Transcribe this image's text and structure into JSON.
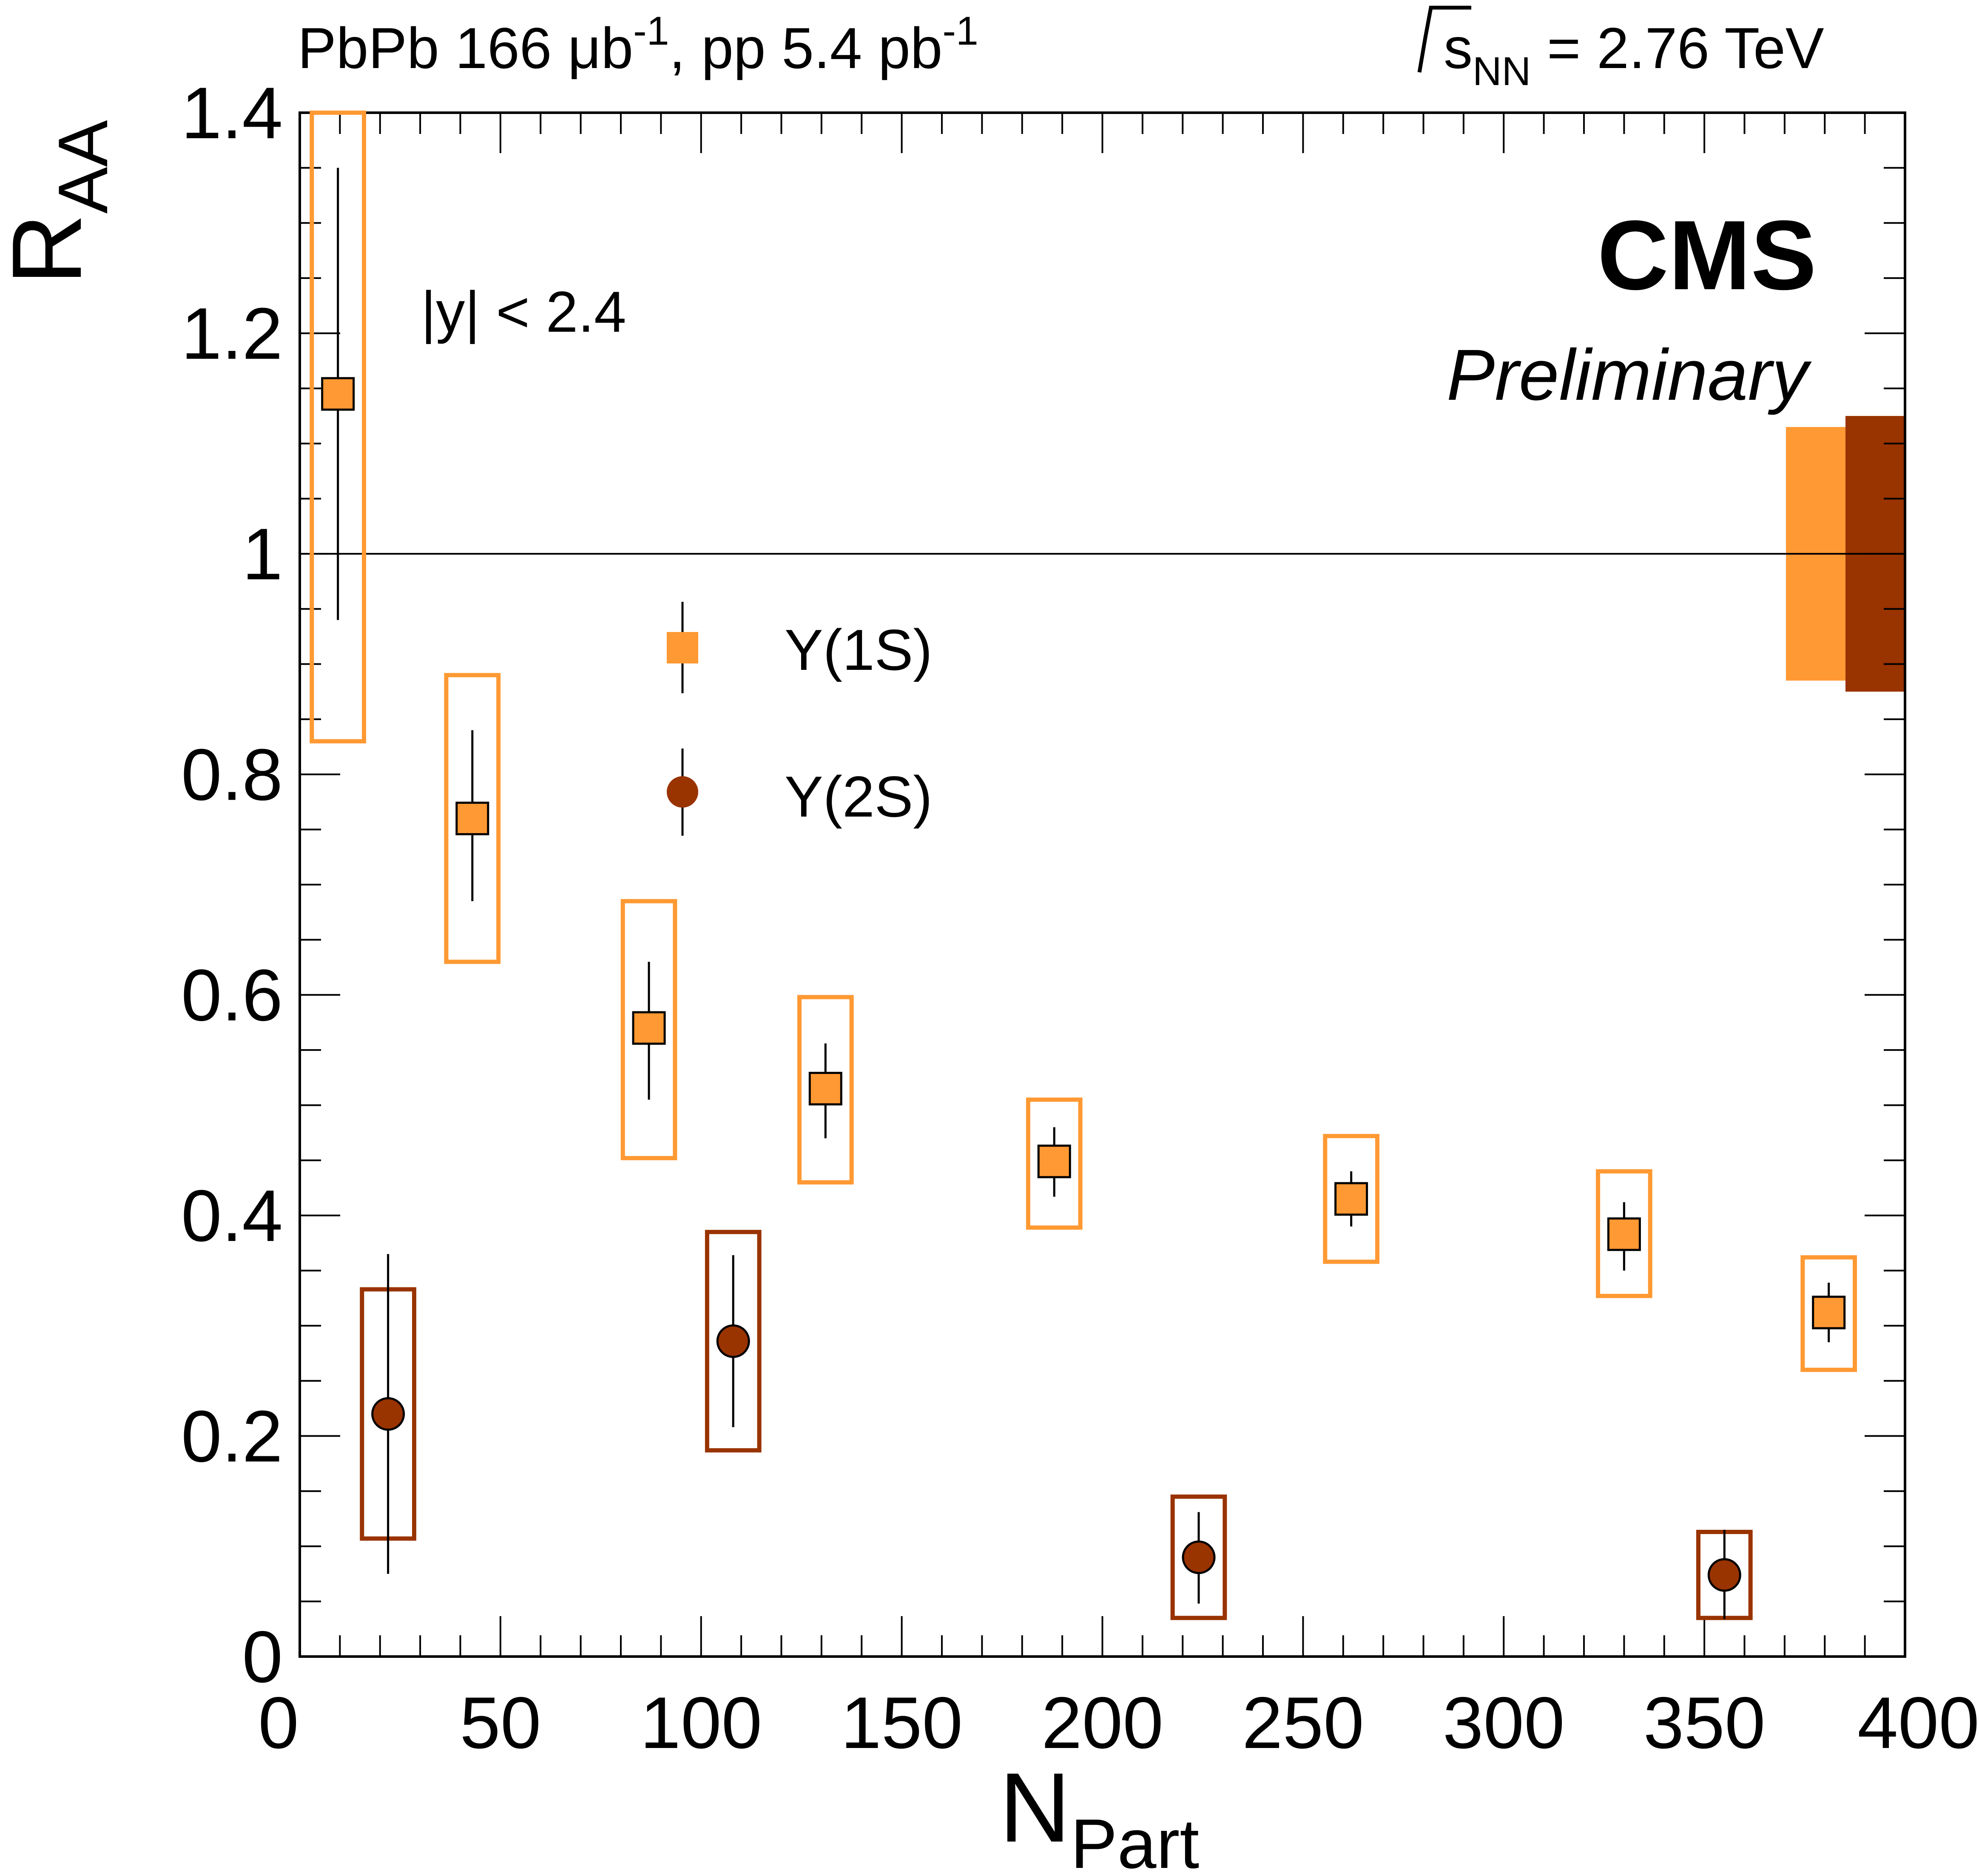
{
  "chart_data": {
    "type": "scatter",
    "header_left": {
      "base": "PbPb 166 μb",
      "sup": "-1",
      "mid": ", pp 5.4 pb",
      "sup2": "-1"
    },
    "header_right": {
      "s": "s",
      "sub": "NN",
      "value": " = 2.76 TeV"
    },
    "experiment": "CMS",
    "status": "Preliminary",
    "cut_label": "|y| < 2.4",
    "xlabel": {
      "main": "N",
      "sub": "Part"
    },
    "ylabel": {
      "main": "R",
      "sub": "AA"
    },
    "xlim": [
      0,
      400
    ],
    "ylim": [
      0,
      1.4
    ],
    "x_ticks": [
      0,
      50,
      100,
      150,
      200,
      250,
      300,
      350,
      400
    ],
    "x_tick_labels": [
      "0",
      "50",
      "100",
      "150",
      "200",
      "250",
      "300",
      "350",
      "400"
    ],
    "y_ticks": [
      0,
      0.2,
      0.4,
      0.6,
      0.8,
      1,
      1.2,
      1.4
    ],
    "y_tick_labels": [
      "0",
      "0.2",
      "0.4",
      "0.6",
      "0.8",
      "1",
      "1.2",
      "1.4"
    ],
    "reference_line": 1.0,
    "global_uncertainty": [
      {
        "series": "Υ(1S)",
        "low": 0.885,
        "high": 1.115,
        "color": "#ff9933"
      },
      {
        "series": "Υ(2S)",
        "low": 0.875,
        "high": 1.125,
        "color": "#993300"
      }
    ],
    "series": [
      {
        "name": "Υ(1S)",
        "marker": "square",
        "color": "#ff9933",
        "points": [
          {
            "x": 9.5,
            "y": 1.145,
            "stat_low": 0.94,
            "stat_high": 1.35,
            "sys_low": 0.83,
            "sys_high": 1.4,
            "sys_x0": 3,
            "sys_x1": 16
          },
          {
            "x": 43,
            "y": 0.76,
            "stat_low": 0.685,
            "stat_high": 0.84,
            "sys_low": 0.63,
            "sys_high": 0.89,
            "sys_x0": 36.5,
            "sys_x1": 49.5
          },
          {
            "x": 87,
            "y": 0.57,
            "stat_low": 0.505,
            "stat_high": 0.63,
            "sys_low": 0.452,
            "sys_high": 0.685,
            "sys_x0": 80.5,
            "sys_x1": 93.5
          },
          {
            "x": 131,
            "y": 0.515,
            "stat_low": 0.47,
            "stat_high": 0.556,
            "sys_low": 0.43,
            "sys_high": 0.598,
            "sys_x0": 124.5,
            "sys_x1": 137.5
          },
          {
            "x": 188,
            "y": 0.449,
            "stat_low": 0.417,
            "stat_high": 0.48,
            "sys_low": 0.389,
            "sys_high": 0.505,
            "sys_x0": 181.5,
            "sys_x1": 194.5
          },
          {
            "x": 262,
            "y": 0.415,
            "stat_low": 0.39,
            "stat_high": 0.44,
            "sys_low": 0.358,
            "sys_high": 0.472,
            "sys_x0": 255.5,
            "sys_x1": 268.5
          },
          {
            "x": 330,
            "y": 0.383,
            "stat_low": 0.35,
            "stat_high": 0.412,
            "sys_low": 0.327,
            "sys_high": 0.44,
            "sys_x0": 323.5,
            "sys_x1": 336.5
          },
          {
            "x": 381,
            "y": 0.312,
            "stat_low": 0.285,
            "stat_high": 0.339,
            "sys_low": 0.26,
            "sys_high": 0.362,
            "sys_x0": 374.5,
            "sys_x1": 387.5
          }
        ]
      },
      {
        "name": "Υ(2S)",
        "marker": "circle",
        "color": "#993300",
        "points": [
          {
            "x": 22,
            "y": 0.22,
            "stat_low": 0.075,
            "stat_high": 0.365,
            "sys_low": 0.107,
            "sys_high": 0.333,
            "sys_x0": 15.5,
            "sys_x1": 28.5
          },
          {
            "x": 108,
            "y": 0.286,
            "stat_low": 0.208,
            "stat_high": 0.364,
            "sys_low": 0.187,
            "sys_high": 0.385,
            "sys_x0": 101.5,
            "sys_x1": 114.5
          },
          {
            "x": 224,
            "y": 0.09,
            "stat_low": 0.048,
            "stat_high": 0.131,
            "sys_low": 0.035,
            "sys_high": 0.145,
            "sys_x0": 217.5,
            "sys_x1": 230.5
          },
          {
            "x": 355,
            "y": 0.074,
            "stat_low": 0.034,
            "stat_high": 0.115,
            "sys_low": 0.035,
            "sys_high": 0.113,
            "sys_x0": 348.5,
            "sys_x1": 361.5
          }
        ]
      }
    ],
    "legend": [
      {
        "label": "Υ(1S)",
        "marker": "square"
      },
      {
        "label": "Υ(2S)",
        "marker": "circle"
      }
    ]
  }
}
